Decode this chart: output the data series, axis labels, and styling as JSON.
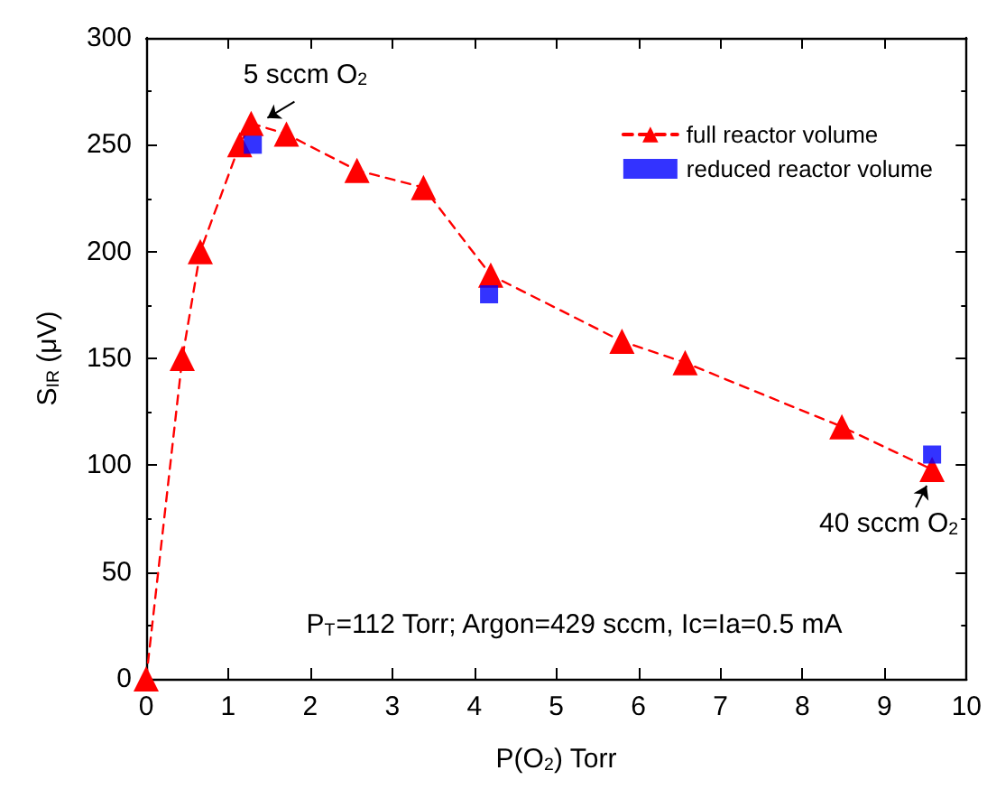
{
  "chart_data": {
    "type": "line",
    "xlabel": "P(O$_{2}$) Torr",
    "ylabel": "S$_{IR}$ (μV)",
    "xlim": [
      0,
      10
    ],
    "xticks": [
      0,
      1,
      2,
      3,
      4,
      5,
      6,
      7,
      8,
      9,
      10
    ],
    "ylim": [
      0,
      300
    ],
    "yticks": [
      0,
      50,
      100,
      150,
      200,
      250,
      300
    ],
    "grid": false,
    "legend": "top right",
    "series": [
      {
        "name": "full reactor volume",
        "type": "line",
        "color": "#ff0000",
        "marker": "triangle",
        "line_style": "dashed",
        "x": [
          0,
          0.44,
          0.66,
          1.14,
          1.28,
          1.71,
          2.57,
          3.38,
          4.2,
          5.8,
          6.57,
          8.48,
          9.58
        ],
        "values": [
          0,
          150,
          200,
          250,
          260,
          255,
          238,
          230,
          189,
          158,
          148,
          118,
          98
        ]
      },
      {
        "name": "reduced reactor volume",
        "type": "scatter",
        "color": "#0000ff",
        "marker": "square",
        "x": [
          1.3,
          4.18,
          9.58
        ],
        "values": [
          250,
          180,
          105
        ]
      }
    ],
    "annotations": [
      {
        "text": "5 sccm O$_{2}$",
        "x": 1.28,
        "y": 260
      },
      {
        "text": "40 sccm O$_{2}$",
        "x": 9.58,
        "y": 98
      },
      "P$_{T}$=112 Torr; Argon=429 sccm, Ic=Ia=0.5 mA"
    ]
  }
}
